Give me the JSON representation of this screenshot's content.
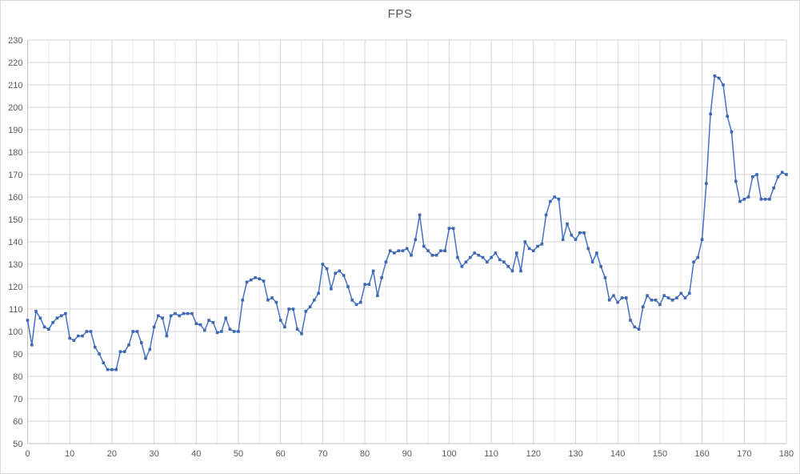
{
  "chart_data": {
    "type": "line",
    "title": "FPS",
    "xlabel": "",
    "ylabel": "",
    "legend": "none",
    "grid": "on",
    "x_start": 0,
    "x_step": 1,
    "xlim": [
      0,
      180
    ],
    "ylim": [
      50,
      230
    ],
    "x_tick_step": 10,
    "x_minor_step": 5,
    "y_tick_step": 10,
    "x_tick_labels": [
      "0",
      "10",
      "20",
      "30",
      "40",
      "50",
      "60",
      "70",
      "80",
      "90",
      "100",
      "110",
      "120",
      "130",
      "140",
      "150",
      "160",
      "170",
      "180"
    ],
    "y_tick_labels": [
      "50",
      "60",
      "70",
      "80",
      "90",
      "100",
      "110",
      "120",
      "130",
      "140",
      "150",
      "160",
      "170",
      "180",
      "190",
      "200",
      "210",
      "220",
      "230"
    ],
    "series": [
      {
        "name": "FPS",
        "color": "#4472C4",
        "marker": "square",
        "values": [
          105,
          94,
          109,
          106,
          102,
          101,
          104,
          106,
          107,
          108,
          97,
          96,
          98,
          98,
          100,
          100,
          93,
          90,
          86,
          83,
          83,
          83,
          91,
          91,
          94,
          100,
          100,
          95,
          88,
          92,
          102,
          107,
          106,
          98,
          107,
          108,
          107,
          108,
          108,
          108,
          103.5,
          103,
          100.5,
          105,
          104,
          99.5,
          100,
          106,
          101,
          100,
          100,
          114,
          122,
          123,
          124,
          123.5,
          122.5,
          114,
          115,
          113,
          105,
          102,
          110,
          110,
          101,
          99,
          109,
          111,
          114,
          117,
          130,
          128,
          119,
          126,
          127,
          125,
          120,
          114,
          112,
          113,
          121,
          121,
          127,
          116,
          124,
          131,
          136,
          135,
          136,
          136,
          137,
          134,
          141,
          152,
          138,
          136,
          134,
          134,
          136,
          136,
          146,
          146,
          133,
          129,
          131,
          133,
          135,
          134,
          133,
          131,
          133,
          135,
          132,
          131,
          129,
          127,
          135,
          127,
          140,
          137,
          136,
          138,
          139,
          152,
          158,
          160,
          159,
          141,
          148,
          143,
          141,
          144,
          144,
          137,
          131,
          135,
          129,
          124,
          114,
          116,
          113,
          115,
          115,
          105,
          102,
          101,
          111,
          116,
          114,
          114,
          112,
          116,
          115,
          114,
          115,
          117,
          115,
          117,
          131,
          133,
          141,
          166,
          197,
          214,
          213,
          210,
          196,
          189,
          167,
          158,
          159,
          160,
          169,
          170,
          159,
          159,
          159,
          164,
          169,
          171,
          170
        ]
      }
    ],
    "colors": {
      "line": "#4472C4",
      "marker": "#3f66b0",
      "major_grid": "#d6d6d6",
      "minor_grid": "#ebebeb",
      "axis_line": "#bfbfbf",
      "tick_label": "#595959",
      "title": "#595959",
      "chart_border": "#d9d9d9",
      "background": "#ffffff"
    }
  }
}
